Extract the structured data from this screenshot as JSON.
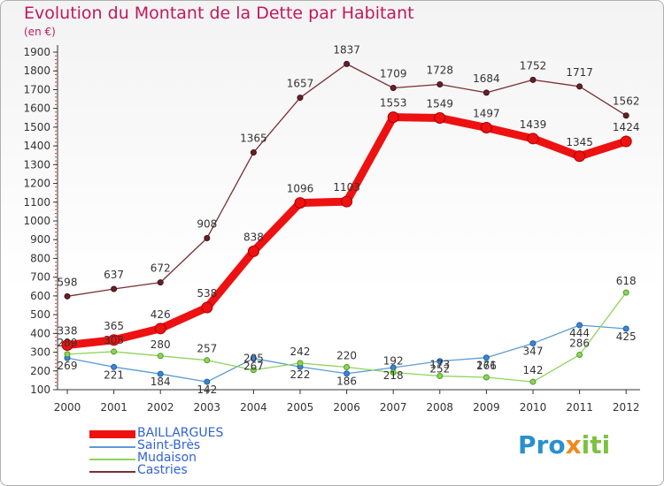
{
  "title": "Evolution du Montant de la Dette par Habitant",
  "unit": "(en €)",
  "logo": {
    "p1": "Pro",
    "p2": "x",
    "p3": "iti"
  },
  "chart_data": {
    "type": "line",
    "title": "Evolution du Montant de la Dette par Habitant",
    "xlabel": "",
    "ylabel": "(en €)",
    "x": [
      "2000",
      "2001",
      "2002",
      "2003",
      "2004",
      "2005",
      "2006",
      "2007",
      "2008",
      "2009",
      "2010",
      "2011",
      "2012"
    ],
    "ylim": [
      100,
      1900
    ],
    "yticks": [
      100,
      200,
      300,
      400,
      500,
      600,
      700,
      800,
      900,
      1000,
      1100,
      1200,
      1300,
      1400,
      1500,
      1600,
      1700,
      1800,
      1900
    ],
    "grid": false,
    "legend_position": "bottom-left",
    "series": [
      {
        "name": "BAILLARGUES",
        "color": "#ee1111",
        "values": [
          338,
          365,
          426,
          538,
          838,
          1096,
          1103,
          1553,
          1549,
          1497,
          1439,
          1345,
          1424
        ]
      },
      {
        "name": "Saint-Brès",
        "color": "#5b9bd5",
        "values": [
          269,
          221,
          184,
          142,
          267,
          222,
          186,
          218,
          252,
          271,
          347,
          444,
          425
        ]
      },
      {
        "name": "Mudaison",
        "color": "#8fd45a",
        "values": [
          289,
          303,
          280,
          257,
          205,
          242,
          220,
          192,
          173,
          166,
          142,
          286,
          618
        ]
      },
      {
        "name": "Castries",
        "color": "#7b2d35",
        "values": [
          598,
          637,
          672,
          908,
          1365,
          1657,
          1837,
          1709,
          1728,
          1684,
          1752,
          1717,
          1562
        ]
      }
    ]
  }
}
